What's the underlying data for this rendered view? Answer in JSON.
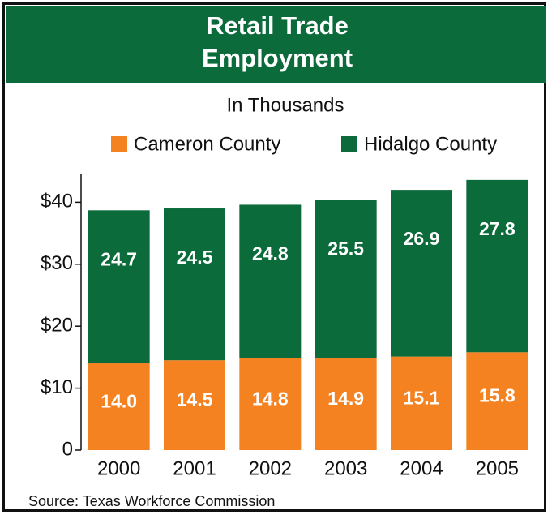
{
  "chart_data": {
    "type": "stacked_bar",
    "title": "Retail Trade Employment",
    "subtitle": "In Thousands",
    "categories": [
      "2000",
      "2001",
      "2002",
      "2003",
      "2004",
      "2005"
    ],
    "series": [
      {
        "name": "Cameron County",
        "color": "#f58220",
        "values": [
          14.0,
          14.5,
          14.8,
          14.9,
          15.1,
          15.8
        ],
        "value_labels": [
          "14.0",
          "14.5",
          "14.8",
          "14.9",
          "15.1",
          "15.8"
        ]
      },
      {
        "name": "Hidalgo County",
        "color": "#0c6b3b",
        "values": [
          24.7,
          24.5,
          24.8,
          25.5,
          26.9,
          27.8
        ],
        "value_labels": [
          "24.7",
          "24.5",
          "24.8",
          "25.5",
          "26.9",
          "27.8"
        ]
      }
    ],
    "ylim": [
      0,
      44.5
    ],
    "yticks": [
      0,
      {
        "value": 10,
        "label": "$10"
      },
      {
        "value": 20,
        "label": "$20"
      },
      {
        "value": 30,
        "label": "$30"
      },
      {
        "value": 40,
        "label": "$40"
      }
    ],
    "source": "Source: Texas Workforce Commission"
  }
}
